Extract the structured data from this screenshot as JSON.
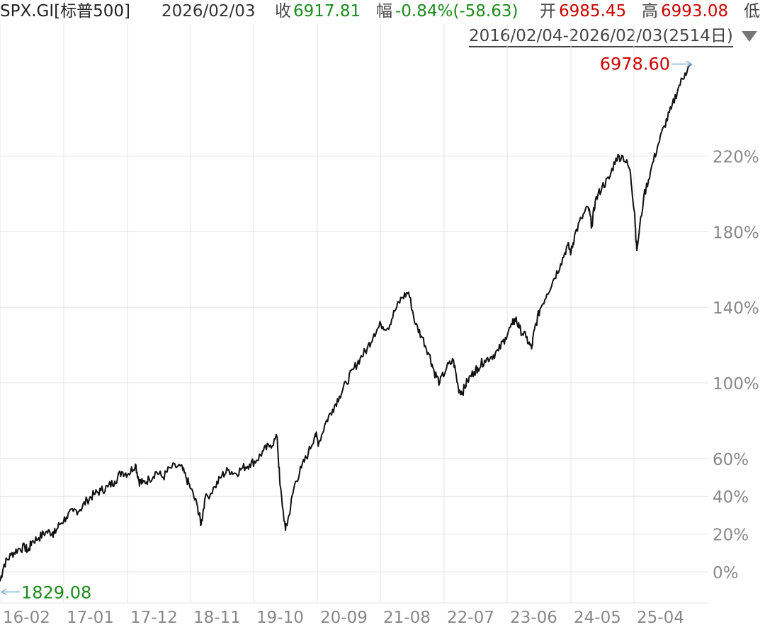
{
  "header": {
    "symbol": "SPX.GI[标普500]",
    "date": "2026/02/03",
    "close_label": "收",
    "close_value": "6917.81",
    "change_label": "幅",
    "change_value": "-0.84%(-58.63)",
    "open_label": "开",
    "open_value": "6985.45",
    "high_label": "高",
    "high_value": "6993.08",
    "low_label": "低",
    "range_text": "2016/02/04-2026/02/03(2514日)",
    "range_dropdown_icon": "triangle-down-icon"
  },
  "colors": {
    "up": "#cc0000",
    "down": "#1a8a1a",
    "line": "#111111",
    "grid": "#e4e4e4",
    "axis_text": "#888888",
    "marker": "#7fb3d5"
  },
  "chart_data": {
    "type": "line",
    "title": "",
    "xlabel": "",
    "ylabel": "",
    "y_unit": "% change from start",
    "y_ticks": [
      0,
      20,
      40,
      60,
      100,
      140,
      180,
      220
    ],
    "y_tick_labels": [
      "0%",
      "20%",
      "40%",
      "60%",
      "100%",
      "140%",
      "180%",
      "220%"
    ],
    "ylim": [
      -5,
      285
    ],
    "x_ticks": [
      "16-02",
      "17-01",
      "17-12",
      "18-11",
      "19-10",
      "20-09",
      "21-08",
      "22-07",
      "23-06",
      "24-05",
      "25-04"
    ],
    "xlim": [
      2016.09,
      2026.09
    ],
    "grid": true,
    "series": [
      {
        "x": [
          2016.09,
          2016.15,
          2016.25,
          2016.35,
          2016.45,
          2016.5,
          2016.55,
          2016.65,
          2016.75,
          2016.85,
          2016.87,
          2016.95,
          2017.05,
          2017.15,
          2017.25,
          2017.35,
          2017.45,
          2017.55,
          2017.65,
          2017.75,
          2017.85,
          2017.95,
          2018.05,
          2018.1,
          2018.15,
          2018.25,
          2018.35,
          2018.45,
          2018.55,
          2018.7,
          2018.78,
          2018.85,
          2018.95,
          2019.0,
          2019.05,
          2019.2,
          2019.3,
          2019.4,
          2019.5,
          2019.6,
          2019.7,
          2019.8,
          2019.9,
          2020.0,
          2020.1,
          2020.14,
          2020.22,
          2020.27,
          2020.35,
          2020.45,
          2020.55,
          2020.65,
          2020.7,
          2020.8,
          2020.9,
          2021.0,
          2021.1,
          2021.2,
          2021.3,
          2021.4,
          2021.5,
          2021.6,
          2021.7,
          2021.8,
          2021.9,
          2022.0,
          2022.1,
          2022.2,
          2022.3,
          2022.37,
          2022.45,
          2022.55,
          2022.65,
          2022.72,
          2022.78,
          2022.85,
          2022.95,
          2023.0,
          2023.1,
          2023.2,
          2023.3,
          2023.4,
          2023.5,
          2023.55,
          2023.6,
          2023.7,
          2023.78,
          2023.82,
          2023.9,
          2024.0,
          2024.1,
          2024.2,
          2024.3,
          2024.35,
          2024.4,
          2024.5,
          2024.6,
          2024.65,
          2024.7,
          2024.8,
          2024.9,
          2025.0,
          2025.1,
          2025.2,
          2025.27,
          2025.3,
          2025.4,
          2025.5,
          2025.6,
          2025.7,
          2025.8,
          2025.9,
          2026.0,
          2026.09
        ],
        "y": [
          -5,
          4,
          9,
          12,
          13,
          11,
          16,
          18,
          21,
          21,
          20,
          25,
          29,
          32,
          33,
          38,
          41,
          43,
          45,
          48,
          53,
          52,
          57,
          48,
          47,
          49,
          53,
          50,
          55,
          56,
          50,
          44,
          34,
          25,
          38,
          45,
          51,
          54,
          52,
          55,
          57,
          59,
          64,
          67,
          71,
          46,
          22,
          30,
          46,
          55,
          63,
          73,
          68,
          79,
          86,
          93,
          100,
          107,
          113,
          118,
          126,
          131,
          129,
          138,
          145,
          148,
          131,
          124,
          115,
          106,
          100,
          108,
          112,
          97,
          95,
          101,
          106,
          108,
          112,
          114,
          117,
          124,
          131,
          134,
          129,
          124,
          118,
          128,
          139,
          147,
          155,
          163,
          173,
          169,
          178,
          187,
          193,
          183,
          196,
          204,
          208,
          219,
          220,
          213,
          190,
          170,
          198,
          212,
          225,
          236,
          245,
          256,
          264,
          268
        ]
      }
    ],
    "annotations": {
      "max_label": "6978.60",
      "min_label": "1829.08"
    }
  }
}
